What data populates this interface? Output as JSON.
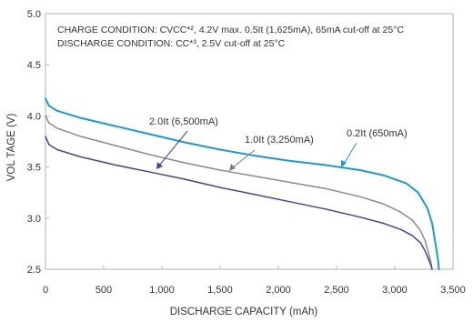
{
  "chart_data": {
    "type": "line",
    "xlabel": "DISCHARGE CAPACITY (mAh)",
    "ylabel": "VOL TAGE (V)",
    "xlim": [
      0,
      3500
    ],
    "ylim": [
      2.5,
      5.0
    ],
    "x_ticks": [
      0,
      500,
      1000,
      1500,
      2000,
      2500,
      3000,
      3500
    ],
    "x_tick_labels": [
      "0",
      "500",
      "1,000",
      "1,500",
      "2,000",
      "2,500",
      "3,000",
      "3,500"
    ],
    "y_ticks": [
      2.5,
      3.0,
      3.5,
      4.0,
      4.5,
      5.0
    ],
    "y_tick_labels": [
      "2.5",
      "3.0",
      "3.5",
      "4.0",
      "4.5",
      "5.0"
    ],
    "grid": false,
    "legend": "none",
    "annotations": [
      "CHARGE CONDITION: CVCC*², 4.2V max. 0.5It (1,625mA), 65mA cut-off at 25°C",
      "DISCHARGE CONDITION: CC*³, 2.5V cut-off at 25°C"
    ],
    "series": [
      {
        "name": "0.2It (650mA)",
        "color": "#1a9ad6",
        "x": [
          0,
          30,
          100,
          300,
          600,
          900,
          1200,
          1500,
          1800,
          2100,
          2400,
          2700,
          2900,
          3100,
          3200,
          3280,
          3320,
          3350,
          3370,
          3380
        ],
        "y": [
          4.17,
          4.1,
          4.05,
          3.98,
          3.9,
          3.82,
          3.74,
          3.67,
          3.61,
          3.56,
          3.52,
          3.47,
          3.42,
          3.34,
          3.25,
          3.1,
          2.95,
          2.75,
          2.6,
          2.5
        ]
      },
      {
        "name": "1.0It (3,250mA)",
        "color": "#8a8a8a",
        "x": [
          0,
          30,
          100,
          300,
          600,
          900,
          1200,
          1500,
          1800,
          2100,
          2400,
          2700,
          2900,
          3050,
          3150,
          3220,
          3260,
          3290,
          3310,
          3320
        ],
        "y": [
          4.0,
          3.93,
          3.88,
          3.8,
          3.71,
          3.62,
          3.54,
          3.47,
          3.41,
          3.35,
          3.29,
          3.21,
          3.14,
          3.06,
          2.98,
          2.88,
          2.78,
          2.66,
          2.57,
          2.5
        ]
      },
      {
        "name": "2.0It (6,500mA)",
        "color": "#4b3fa0",
        "x": [
          0,
          30,
          100,
          300,
          600,
          900,
          1200,
          1500,
          1800,
          2100,
          2400,
          2700,
          2900,
          3050,
          3150,
          3220,
          3260,
          3290,
          3310,
          3320
        ],
        "y": [
          3.8,
          3.72,
          3.67,
          3.6,
          3.52,
          3.45,
          3.38,
          3.3,
          3.23,
          3.16,
          3.09,
          3.01,
          2.95,
          2.89,
          2.83,
          2.76,
          2.68,
          2.6,
          2.54,
          2.5
        ]
      }
    ]
  },
  "series_labels": {
    "s02": "0.2It (650mA)",
    "s10": "1.0It (3,250mA)",
    "s20": "2.0It (6,500mA)"
  }
}
